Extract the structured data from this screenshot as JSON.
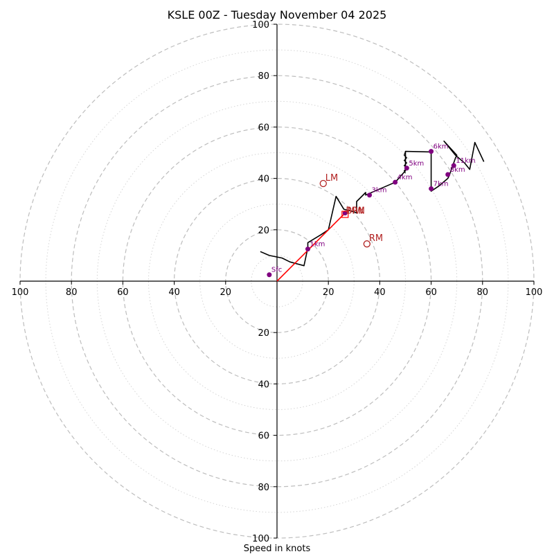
{
  "chart_data": {
    "type": "hodograph",
    "title": "KSLE 00Z - Tuesday November 04 2025",
    "xlabel": "Speed in knots",
    "range": [
      -100,
      100
    ],
    "major_rings": [
      20,
      40,
      60,
      80,
      100
    ],
    "minor_rings": [
      10,
      30,
      50,
      70,
      90
    ],
    "x_tick_labels": [
      "100",
      "80",
      "60",
      "40",
      "20",
      "20",
      "40",
      "60",
      "80",
      "100"
    ],
    "x_tick_values": [
      -100,
      -80,
      -60,
      -40,
      -20,
      20,
      40,
      60,
      80,
      100
    ],
    "y_tick_labels": [
      "100",
      "80",
      "60",
      "40",
      "20",
      "20",
      "40",
      "60",
      "80",
      "100"
    ],
    "y_tick_values": [
      100,
      80,
      60,
      40,
      20,
      -20,
      -40,
      -60,
      -80,
      -100
    ],
    "trace": [
      [
        -6.5,
        11.5
      ],
      [
        -3,
        10
      ],
      [
        2,
        9
      ],
      [
        5,
        7.5
      ],
      [
        10.5,
        6
      ],
      [
        12,
        13
      ],
      [
        12,
        15
      ],
      [
        17,
        18
      ],
      [
        20,
        20
      ],
      [
        23,
        33
      ],
      [
        26,
        28
      ],
      [
        28,
        27.5
      ],
      [
        30,
        27
      ],
      [
        31,
        26.5
      ],
      [
        31,
        31
      ],
      [
        34.5,
        34.5
      ],
      [
        34.5,
        33.5
      ],
      [
        46,
        38.5
      ],
      [
        50,
        43
      ],
      [
        50,
        44
      ],
      [
        50,
        45
      ],
      [
        50,
        46
      ],
      [
        50,
        47
      ],
      [
        50,
        48
      ],
      [
        50,
        50.5
      ],
      [
        60,
        50.3
      ],
      [
        60,
        35
      ],
      [
        63,
        37
      ],
      [
        66.5,
        40
      ],
      [
        67,
        41
      ],
      [
        69.5,
        48
      ],
      [
        70,
        49
      ],
      [
        65,
        54.5
      ],
      [
        69.5,
        49
      ],
      [
        73,
        46
      ],
      [
        75,
        43.5
      ],
      [
        77,
        54
      ],
      [
        80.5,
        46.5
      ]
    ],
    "zigzag": [
      [
        50,
        42
      ],
      [
        49.5,
        43
      ],
      [
        50.5,
        44
      ],
      [
        49.5,
        45
      ],
      [
        50.5,
        46
      ],
      [
        49.5,
        47
      ],
      [
        50.5,
        48
      ],
      [
        49.5,
        49
      ],
      [
        50,
        50.5
      ]
    ],
    "mean_wind_line": [
      [
        0,
        0
      ],
      [
        3,
        3
      ],
      [
        6,
        6
      ],
      [
        10,
        10
      ],
      [
        15,
        15
      ],
      [
        18,
        18
      ],
      [
        20,
        20
      ],
      [
        23,
        23
      ],
      [
        26,
        26
      ]
    ],
    "points": [
      {
        "label": "Sfc",
        "u": -3,
        "v": 2.5
      },
      {
        "label": "1km",
        "u": 12,
        "v": 12.5
      },
      {
        "label": "3km",
        "u": 36,
        "v": 33.5
      },
      {
        "label": "4km",
        "u": 46,
        "v": 38.5
      },
      {
        "label": "5km",
        "u": 50.5,
        "v": 44
      },
      {
        "label": "6km",
        "u": 60,
        "v": 50.5
      },
      {
        "label": "7km",
        "u": 60,
        "v": 36
      },
      {
        "label": "8km",
        "u": 66.5,
        "v": 41.5
      },
      {
        "label": "11km",
        "u": 68.8,
        "v": 45
      },
      {
        "label": "",
        "u": 26.5,
        "v": 26.5
      }
    ],
    "storm_motion": [
      {
        "label": "LM",
        "u": 18,
        "v": 38
      },
      {
        "label": "RM",
        "u": 35,
        "v": 14.5
      }
    ],
    "mean_wind_marker": {
      "label": "MW",
      "u": 26.5,
      "v": 26
    },
    "storm_motion_label": "BRN"
  },
  "colors": {
    "trace": "#000000",
    "points": "#800080",
    "mean_wind": "#ff0000",
    "storm_motion": "#b22222",
    "rings": "#bdbdbd"
  }
}
